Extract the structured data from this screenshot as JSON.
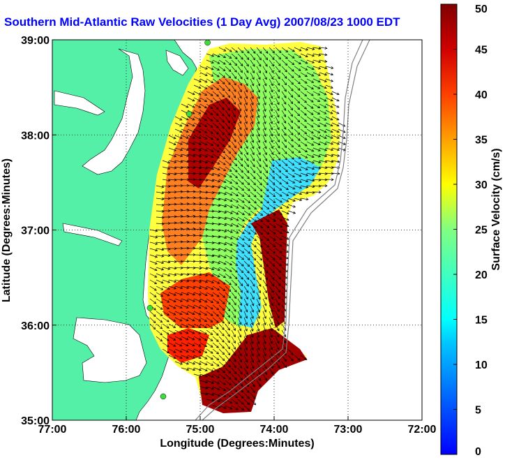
{
  "map": {
    "title": "Southern Mid-Atlantic Raw Velocities (1 Day Avg) 2007/08/23 1000 EDT",
    "xlabel": "Longitude (Degrees:Minutes)",
    "ylabel": "Latitude (Degrees:Minutes)",
    "x_ticks": [
      "77:00",
      "76:00",
      "75:00",
      "74:00",
      "73:00",
      "72:00"
    ],
    "y_ticks": [
      "39:00",
      "38:00",
      "37:00",
      "36:00",
      "35:00"
    ],
    "x_range": [
      -77,
      -72
    ],
    "y_range": [
      35,
      39
    ],
    "grid": true,
    "land_color": "#55f0a8",
    "water_color": "#ffffff",
    "arrow_color": "#000000",
    "station_color": "#3cdc3c",
    "stations": [
      {
        "lon": -74.9,
        "lat": 38.97
      },
      {
        "lon": -75.15,
        "lat": 38.22
      },
      {
        "lon": -75.68,
        "lat": 36.18
      },
      {
        "lon": -75.5,
        "lat": 35.25
      }
    ]
  },
  "colorbar": {
    "label": "Surface Velocity (cm/s)",
    "ticks": [
      "0",
      "5",
      "10",
      "15",
      "20",
      "25",
      "30",
      "35",
      "40",
      "45",
      "50"
    ],
    "range": [
      0,
      50
    ],
    "colormap": [
      "#0000ff",
      "#00ffff",
      "#ffff00",
      "#ff0000",
      "#800000"
    ]
  }
}
